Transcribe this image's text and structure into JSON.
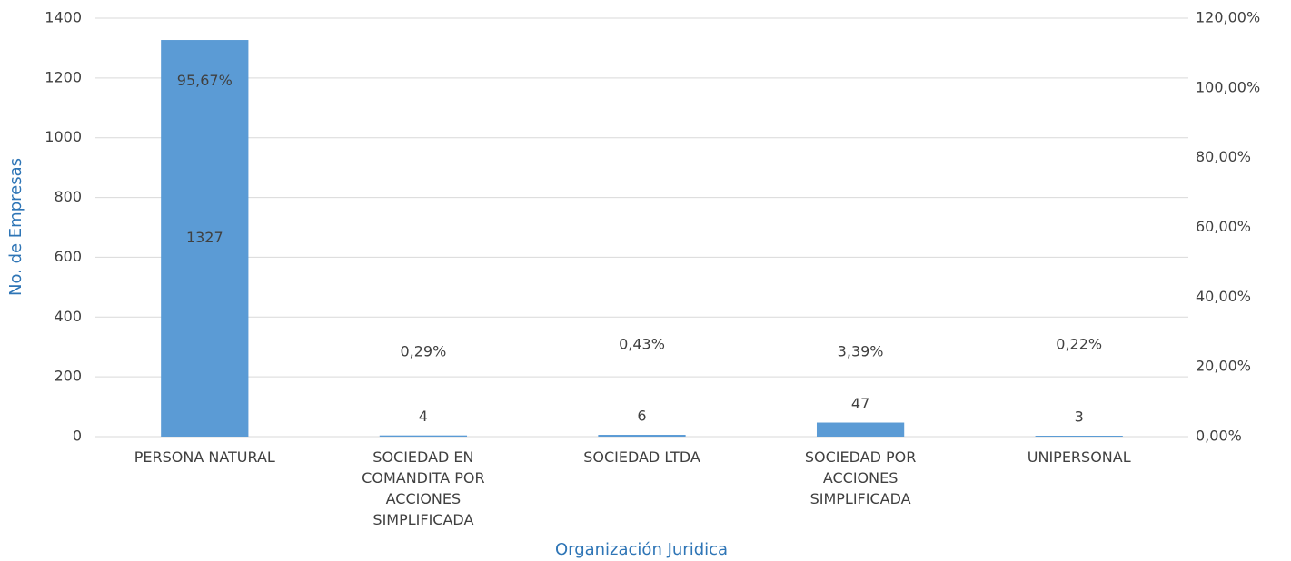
{
  "chart_data": {
    "type": "bar",
    "x_label": "Organización Juridica",
    "y_label": "No. de Empresas",
    "categories": [
      "PERSONA NATURAL",
      "SOCIEDAD EN COMANDITA POR ACCIONES SIMPLIFICADA",
      "SOCIEDAD LTDA",
      "SOCIEDAD POR ACCIONES SIMPLIFICADA",
      "UNIPERSONAL"
    ],
    "series": [
      {
        "color": "#5b9bd5",
        "values": [
          1327,
          4,
          6,
          47,
          3
        ]
      },
      {
        "axis": "y2",
        "values": [
          95.67,
          0.29,
          0.43,
          3.39,
          0.22
        ],
        "value_labels": [
          "95,67%",
          "0,29%",
          "0,43%",
          "3,39%",
          "0,22%"
        ]
      }
    ],
    "ylim": [
      0,
      1400
    ],
    "yticks": [
      0,
      200,
      400,
      600,
      800,
      1000,
      1200,
      1400
    ],
    "y2lim": [
      0,
      120
    ],
    "y2ticks": [
      {
        "value": 0,
        "label": "0,00%"
      },
      {
        "value": 20,
        "label": "20,00%"
      },
      {
        "value": 40,
        "label": "40,00%"
      },
      {
        "value": 60,
        "label": "60,00%"
      },
      {
        "value": 80,
        "label": "80,00%"
      },
      {
        "value": 100,
        "label": "100,00%"
      },
      {
        "value": 120,
        "label": "120,00%"
      }
    ],
    "grid": true
  }
}
